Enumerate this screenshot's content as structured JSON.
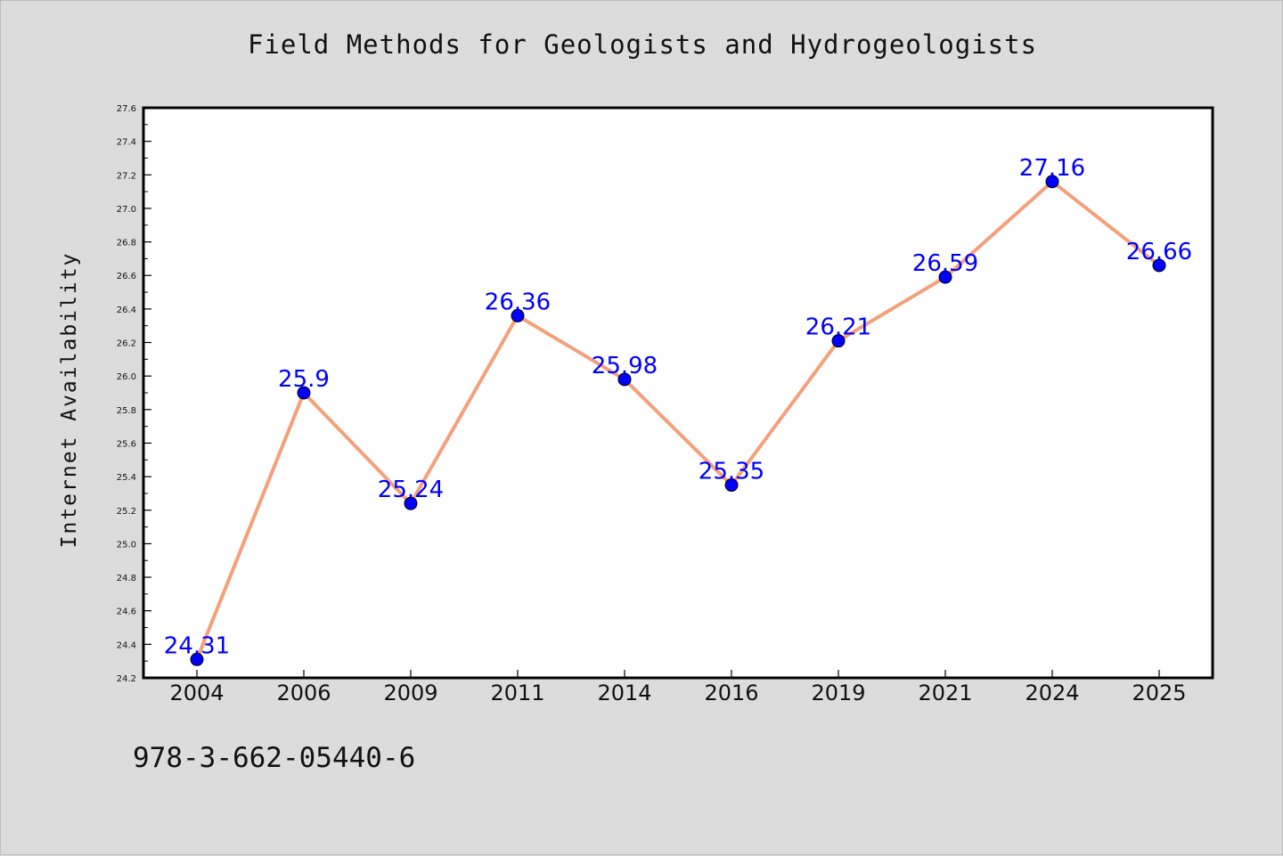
{
  "title": "Field Methods for Geologists and Hydrogeologists",
  "footer_text": "978-3-662-05440-6",
  "chart_data": {
    "type": "line",
    "title": "Field Methods for Geologists and Hydrogeologists",
    "xlabel": "",
    "ylabel": "Internet Availability",
    "categories": [
      "2004",
      "2006",
      "2009",
      "2011",
      "2014",
      "2016",
      "2019",
      "2021",
      "2024",
      "2025"
    ],
    "series": [
      {
        "values": [
          24.31,
          25.9,
          25.24,
          26.36,
          25.98,
          25.35,
          26.21,
          26.59,
          27.16,
          26.66
        ],
        "data_labels": [
          "24.31",
          "25.9",
          "25.24",
          "26.36",
          "25.98",
          "25.35",
          "26.21",
          "26.59",
          "27.16",
          "26.66"
        ],
        "line_color": "#f4a07a",
        "marker_color": "#0000ff"
      }
    ],
    "ylim": [
      24.2,
      27.6
    ],
    "y_ticks": [
      "24.2",
      "24.4",
      "24.6",
      "24.8",
      "25.0",
      "25.2",
      "25.4",
      "25.6",
      "25.8",
      "26.0",
      "26.2",
      "26.4",
      "26.6",
      "26.8",
      "27.0",
      "27.2",
      "27.4",
      "27.6"
    ],
    "grid": false,
    "legend": "none"
  }
}
